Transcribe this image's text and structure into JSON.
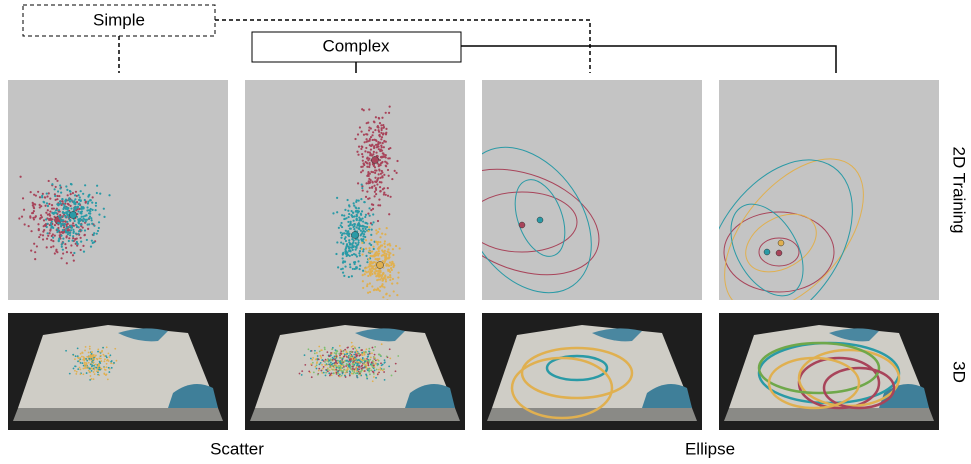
{
  "groups": {
    "simple": "Simple",
    "complex": "Complex"
  },
  "rows": {
    "top": "2D Training",
    "bottom": "3D"
  },
  "columns": {
    "left": "Scatter",
    "right": "Ellipse"
  }
}
